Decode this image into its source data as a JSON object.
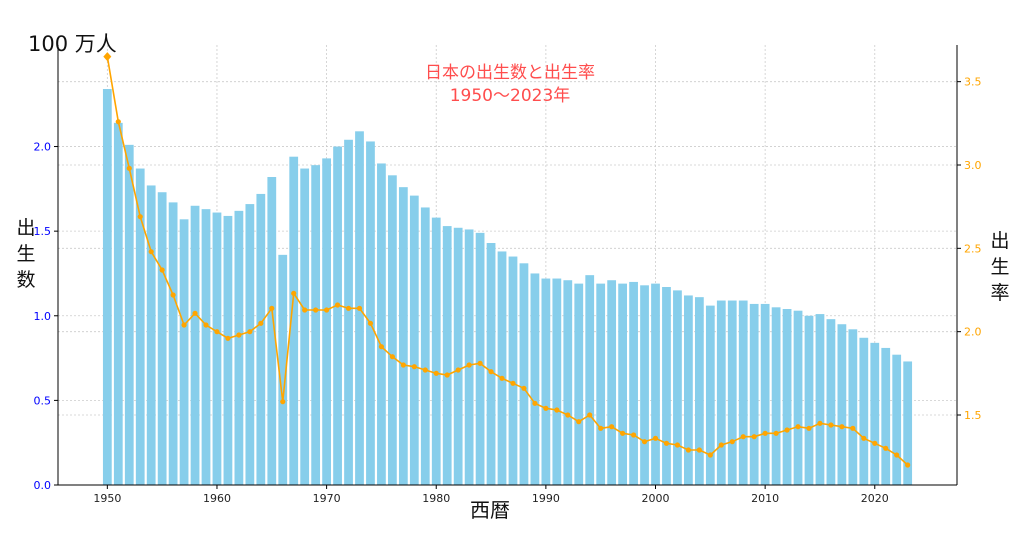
{
  "chart_data": {
    "type": "bar+line",
    "title_line1": "日本の出生数と出生率",
    "title_line2": "1950〜2023年",
    "unit_label": "100 万人",
    "xlabel": "西暦",
    "ylabel_left": [
      "出",
      "生",
      "数"
    ],
    "ylabel_right": [
      "出",
      "生",
      "率"
    ],
    "x": [
      1950,
      1951,
      1952,
      1953,
      1954,
      1955,
      1956,
      1957,
      1958,
      1959,
      1960,
      1961,
      1962,
      1963,
      1964,
      1965,
      1966,
      1967,
      1968,
      1969,
      1970,
      1971,
      1972,
      1973,
      1974,
      1975,
      1976,
      1977,
      1978,
      1979,
      1980,
      1981,
      1982,
      1983,
      1984,
      1985,
      1986,
      1987,
      1988,
      1989,
      1990,
      1991,
      1992,
      1993,
      1994,
      1995,
      1996,
      1997,
      1998,
      1999,
      2000,
      2001,
      2002,
      2003,
      2004,
      2005,
      2006,
      2007,
      2008,
      2009,
      2010,
      2011,
      2012,
      2013,
      2014,
      2015,
      2016,
      2017,
      2018,
      2019,
      2020,
      2021,
      2022,
      2023
    ],
    "series": [
      {
        "name": "出生数",
        "axis": "left",
        "type": "bar",
        "color": "#87ceeb",
        "values": [
          2.34,
          2.14,
          2.01,
          1.87,
          1.77,
          1.73,
          1.67,
          1.57,
          1.65,
          1.63,
          1.61,
          1.59,
          1.62,
          1.66,
          1.72,
          1.82,
          1.36,
          1.94,
          1.87,
          1.89,
          1.93,
          2.0,
          2.04,
          2.09,
          2.03,
          1.9,
          1.83,
          1.76,
          1.71,
          1.64,
          1.58,
          1.53,
          1.52,
          1.51,
          1.49,
          1.43,
          1.38,
          1.35,
          1.31,
          1.25,
          1.22,
          1.22,
          1.21,
          1.19,
          1.24,
          1.19,
          1.21,
          1.19,
          1.2,
          1.18,
          1.19,
          1.17,
          1.15,
          1.12,
          1.11,
          1.06,
          1.09,
          1.09,
          1.09,
          1.07,
          1.07,
          1.05,
          1.04,
          1.03,
          1.0,
          1.01,
          0.98,
          0.95,
          0.92,
          0.87,
          0.84,
          0.81,
          0.77,
          0.73
        ]
      },
      {
        "name": "出生率",
        "axis": "right",
        "type": "line",
        "color": "#ffa500",
        "values": [
          3.65,
          3.26,
          2.98,
          2.69,
          2.48,
          2.37,
          2.22,
          2.04,
          2.11,
          2.04,
          2.0,
          1.96,
          1.98,
          2.0,
          2.05,
          2.14,
          1.58,
          2.23,
          2.13,
          2.13,
          2.13,
          2.16,
          2.14,
          2.14,
          2.05,
          1.91,
          1.85,
          1.8,
          1.79,
          1.77,
          1.75,
          1.74,
          1.77,
          1.8,
          1.81,
          1.76,
          1.72,
          1.69,
          1.66,
          1.57,
          1.54,
          1.53,
          1.5,
          1.46,
          1.5,
          1.42,
          1.43,
          1.39,
          1.38,
          1.34,
          1.36,
          1.33,
          1.32,
          1.29,
          1.29,
          1.26,
          1.32,
          1.34,
          1.37,
          1.37,
          1.39,
          1.39,
          1.41,
          1.43,
          1.42,
          1.45,
          1.44,
          1.43,
          1.42,
          1.36,
          1.33,
          1.3,
          1.26,
          1.2
        ]
      }
    ],
    "xlim": [
      1945.5,
      2027.5
    ],
    "ylim_left": [
      0,
      2.6
    ],
    "ylim_right": [
      1.08,
      3.72
    ],
    "xticks": [
      1950,
      1960,
      1970,
      1980,
      1990,
      2000,
      2010,
      2020
    ],
    "yticks_left": [
      0.0,
      0.5,
      1.0,
      1.5,
      2.0
    ],
    "yticks_left_labels": [
      "0.0",
      "0.5",
      "1.0",
      "1.5",
      "2.0"
    ],
    "yticks_right": [
      1.5,
      2.0,
      2.5,
      3.0,
      3.5
    ],
    "yticks_right_labels": [
      "1.5",
      "2.0",
      "2.5",
      "3.0",
      "3.5"
    ],
    "grid": true,
    "colors": {
      "left_tick": "#0000ff",
      "right_tick": "#ffa500",
      "title": "#ff4d4d"
    }
  }
}
